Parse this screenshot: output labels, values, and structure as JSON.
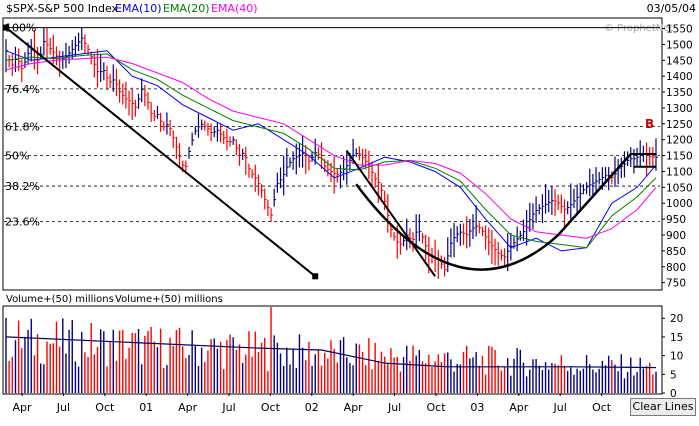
{
  "header": {
    "symbol": "$SPX-S&P 500 Index",
    "ema10": "EMA(10)",
    "ema20": "EMA(20)",
    "ema40": "EMA(40)",
    "date": "03/05/04",
    "watermark": "© ProphetNet"
  },
  "colors": {
    "background": "#ffffff",
    "plot_background": "#ffffff",
    "bar_up": "#000080",
    "bar_down": "#ff0000",
    "ema10": "#0000ff",
    "ema20": "#008000",
    "ema40": "#ff00ff",
    "trendline": "#000000",
    "gridline": "#000000",
    "label_b": "#cc0000"
  },
  "chart_data": [
    {
      "type": "line",
      "title": "$SPX-S&P 500 Index",
      "y_scale": "linear",
      "ylim": [
        730,
        1580
      ],
      "y_ticks": [
        750,
        800,
        850,
        900,
        950,
        1000,
        1050,
        1100,
        1150,
        1200,
        1250,
        1300,
        1350,
        1400,
        1450,
        1500,
        1550
      ],
      "x_tick_labels": [
        "Apr",
        "Jul",
        "Oct",
        "01",
        "Apr",
        "Jul",
        "Oct",
        "02",
        "Apr",
        "Jul",
        "Oct",
        "03",
        "Apr",
        "Jul",
        "Oct"
      ],
      "fib_levels": [
        {
          "label": "100%",
          "value": 1553
        },
        {
          "label": "76.4%",
          "value": 1360
        },
        {
          "label": "61.8%",
          "value": 1242
        },
        {
          "label": "50%",
          "value": 1150
        },
        {
          "label": "38.2%",
          "value": 1054
        },
        {
          "label": "23.6%",
          "value": 942
        }
      ],
      "annotation": "B",
      "series": [
        {
          "name": "EMA(10)",
          "x": [
            0,
            8,
            16,
            24,
            32,
            40,
            48,
            56,
            64,
            72,
            80,
            88,
            96,
            104,
            112,
            120,
            128,
            136,
            144,
            152,
            160,
            168,
            176,
            184,
            192,
            200,
            206
          ],
          "values": [
            1480,
            1450,
            1460,
            1470,
            1480,
            1400,
            1370,
            1310,
            1270,
            1230,
            1250,
            1200,
            1150,
            1080,
            1110,
            1145,
            1130,
            1100,
            1050,
            950,
            860,
            890,
            850,
            860,
            1000,
            1050,
            1120
          ]
        },
        {
          "name": "EMA(20)",
          "x": [
            0,
            8,
            16,
            24,
            32,
            40,
            48,
            56,
            64,
            72,
            80,
            88,
            96,
            104,
            112,
            120,
            128,
            136,
            144,
            152,
            160,
            168,
            176,
            184,
            192,
            200,
            206
          ],
          "values": [
            1450,
            1460,
            1455,
            1465,
            1470,
            1420,
            1390,
            1340,
            1300,
            1260,
            1240,
            1220,
            1170,
            1110,
            1105,
            1130,
            1135,
            1110,
            1070,
            980,
            900,
            880,
            870,
            860,
            960,
            1020,
            1080
          ]
        },
        {
          "name": "EMA(40)",
          "x": [
            0,
            8,
            16,
            24,
            32,
            40,
            48,
            56,
            64,
            72,
            80,
            88,
            96,
            104,
            112,
            120,
            128,
            136,
            144,
            152,
            160,
            168,
            176,
            184,
            192,
            200,
            206
          ],
          "values": [
            1420,
            1440,
            1450,
            1455,
            1460,
            1440,
            1410,
            1380,
            1330,
            1290,
            1270,
            1250,
            1200,
            1150,
            1120,
            1120,
            1135,
            1125,
            1095,
            1030,
            950,
            910,
            900,
            890,
            920,
            980,
            1050
          ]
        }
      ],
      "trendlines": [
        {
          "x": [
            0,
            98
          ],
          "values": [
            1553,
            770
          ]
        },
        {
          "x": [
            108,
            136
          ],
          "values": [
            1165,
            770
          ]
        }
      ],
      "weekly_closes": [
        1480,
        1430,
        1460,
        1420,
        1470,
        1490,
        1440,
        1510,
        1490,
        1470,
        1450,
        1460,
        1480,
        1500,
        1520,
        1490,
        1450,
        1410,
        1420,
        1380,
        1390,
        1350,
        1330,
        1320,
        1300,
        1360,
        1330,
        1270,
        1280,
        1240,
        1250,
        1200,
        1150,
        1100,
        1180,
        1230,
        1250,
        1240,
        1220,
        1230,
        1210,
        1190,
        1200,
        1150,
        1160,
        1100,
        1080,
        1050,
        1000,
        960,
        1060,
        1080,
        1120,
        1140,
        1150,
        1160,
        1130,
        1160,
        1150,
        1110,
        1100,
        1090,
        1100,
        1120,
        1150,
        1160,
        1140,
        1120,
        1080,
        1060,
        1000,
        920,
        880,
        870,
        900,
        880,
        920,
        890,
        840,
        830,
        820,
        790,
        870,
        900,
        910,
        900,
        920,
        930,
        910,
        880,
        860,
        840,
        830,
        860,
        880,
        900,
        920,
        960,
        980,
        990,
        1000,
        1010,
        1000,
        980,
        990,
        1010,
        1030,
        1050,
        1060,
        1070,
        1080,
        1090,
        1080,
        1110,
        1120,
        1140,
        1140,
        1150,
        1155,
        1145,
        1145
      ]
    },
    {
      "type": "bar",
      "title": "Volume+(50) millions",
      "ylim": [
        0,
        23
      ],
      "y_ticks": [
        0,
        5,
        10,
        15,
        20
      ],
      "moving_average_label": "Volume+(50) millions",
      "volume_ma": {
        "x": [
          0,
          40,
          80,
          100,
          120,
          140,
          160,
          180,
          206
        ],
        "values": [
          15,
          13.5,
          12,
          11.5,
          8,
          7,
          7,
          7,
          6.8
        ]
      }
    }
  ],
  "legend_row": {
    "volume_label": "Volume+(50) millions",
    "volume_ma_label": "Volume+(50) millions"
  },
  "controls": {
    "clear_lines": "Clear Lines"
  }
}
